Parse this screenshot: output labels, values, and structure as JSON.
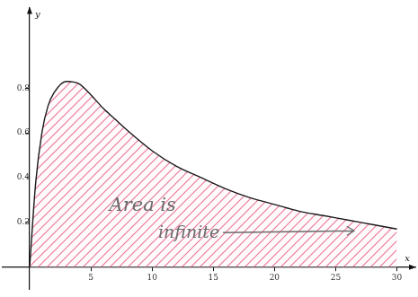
{
  "chart_data": {
    "type": "line",
    "x": [
      0,
      0.5,
      1,
      1.5,
      2,
      3,
      4,
      5,
      6,
      7,
      8,
      10,
      12,
      14,
      16,
      18,
      20,
      22,
      24,
      26,
      28,
      30
    ],
    "values": [
      0,
      0.38,
      0.6,
      0.72,
      0.78,
      0.83,
      0.82,
      0.77,
      0.71,
      0.66,
      0.61,
      0.52,
      0.45,
      0.4,
      0.35,
      0.31,
      0.28,
      0.25,
      0.23,
      0.21,
      0.19,
      0.17
    ],
    "color": "#1a1a1a",
    "xlim": [
      -2.2,
      31.5
    ],
    "ylim": [
      -0.1,
      1.16
    ],
    "xticks": [
      5,
      10,
      15,
      20,
      25,
      30
    ],
    "yticks": [
      0.2,
      0.4,
      0.6,
      0.8
    ],
    "grid": false,
    "xlabel": "x",
    "ylabel": "y",
    "annotation": "Area is\ninfinite"
  }
}
